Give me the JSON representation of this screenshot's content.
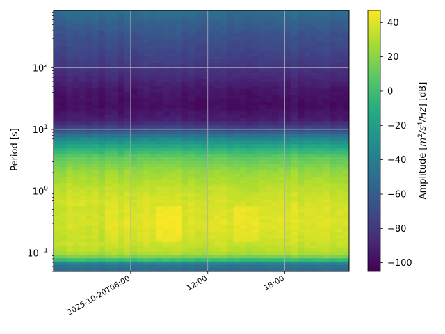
{
  "chart_data": {
    "type": "heatmap",
    "x_axis": {
      "label": "",
      "ticks": [
        {
          "label": "2025-10-20T06:00",
          "hour": 6
        },
        {
          "label": "12:00",
          "hour": 12
        },
        {
          "label": "18:00",
          "hour": 18
        }
      ],
      "xlim_hours": [
        0,
        23
      ]
    },
    "y_axis": {
      "label": "Period [s]",
      "scale": "log",
      "ylim": [
        0.05,
        850
      ],
      "ticks": [
        {
          "value": 0.1,
          "base": "10",
          "exp": "−1"
        },
        {
          "value": 1,
          "base": "10",
          "exp": "0"
        },
        {
          "value": 10,
          "base": "10",
          "exp": "1"
        },
        {
          "value": 100,
          "base": "10",
          "exp": "2"
        }
      ]
    },
    "colorbar": {
      "label_prefix": "Amplitude [",
      "label_unit_m": "m",
      "label_unit_m_exp": "2",
      "label_unit_s": "/s",
      "label_unit_s_exp": "4",
      "label_unit_hz": "/Hz",
      "label_suffix": "] [dB]",
      "range": [
        -105,
        47
      ],
      "ticks": [
        "40",
        "20",
        "0",
        "−20",
        "−40",
        "−60",
        "−80",
        "−100"
      ],
      "tick_values": [
        40,
        20,
        0,
        -20,
        -40,
        -60,
        -80,
        -100
      ],
      "colormap": "viridis"
    },
    "grid": true,
    "profile_db": [
      {
        "period": 0.05,
        "db": -55
      },
      {
        "period": 0.065,
        "db": -45
      },
      {
        "period": 0.08,
        "db": 10
      },
      {
        "period": 0.1,
        "db": 30
      },
      {
        "period": 0.15,
        "db": 36
      },
      {
        "period": 0.3,
        "db": 40
      },
      {
        "period": 0.6,
        "db": 38
      },
      {
        "period": 1.0,
        "db": 34
      },
      {
        "period": 2.0,
        "db": 24
      },
      {
        "period": 3.5,
        "db": 10
      },
      {
        "period": 5.0,
        "db": -10
      },
      {
        "period": 7.0,
        "db": -35
      },
      {
        "period": 10.0,
        "db": -70
      },
      {
        "period": 14.0,
        "db": -92
      },
      {
        "period": 25.0,
        "db": -100
      },
      {
        "period": 45.0,
        "db": -95
      },
      {
        "period": 80.0,
        "db": -85
      },
      {
        "period": 150.0,
        "db": -75
      },
      {
        "period": 300.0,
        "db": -68
      },
      {
        "period": 500.0,
        "db": -60
      },
      {
        "period": 850.0,
        "db": -50
      }
    ]
  }
}
